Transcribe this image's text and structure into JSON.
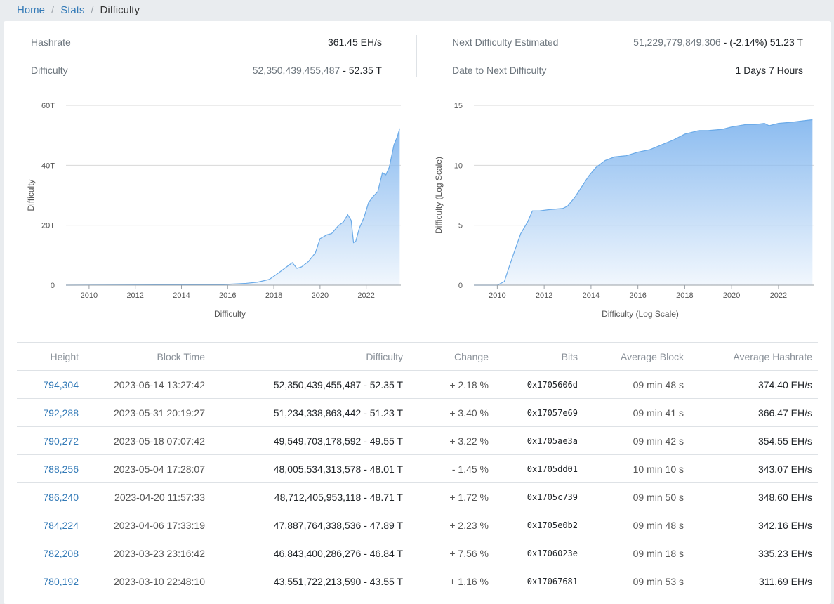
{
  "breadcrumb": {
    "home": "Home",
    "stats": "Stats",
    "current": "Difficulty"
  },
  "summary": {
    "hashrate_label": "Hashrate",
    "hashrate_value": "361.45 EH/s",
    "difficulty_label": "Difficulty",
    "difficulty_raw": "52,350,439,455,487",
    "difficulty_short": "52.35 T",
    "next_label": "Next Difficulty Estimated",
    "next_raw": "51,229,779,849,306",
    "next_change": "(-2.14%)",
    "next_short": "51.23 T",
    "date_label": "Date to Next Difficulty",
    "date_value": "1 Days 7 Hours"
  },
  "colors": {
    "accent": "#337ab7",
    "fill": "#8cbcf0",
    "line": "#6aaae8",
    "up": "#1a8a1a",
    "down": "#d62020"
  },
  "chart_data": [
    {
      "type": "area",
      "title": "Difficulty",
      "xlabel": "Difficulty",
      "ylabel": "Difficulty",
      "x_ticks": [
        "2010",
        "2012",
        "2014",
        "2016",
        "2018",
        "2020",
        "2022"
      ],
      "y_ticks": [
        "0",
        "20T",
        "40T",
        "60T"
      ],
      "xlim": [
        2009.0,
        2023.5
      ],
      "ylim": [
        0,
        60
      ],
      "y_unit": "T",
      "grid": true,
      "x": [
        2009.0,
        2013.0,
        2015.0,
        2016.0,
        2016.8,
        2017.3,
        2017.8,
        2018.1,
        2018.5,
        2018.8,
        2019.0,
        2019.2,
        2019.5,
        2019.8,
        2020.0,
        2020.3,
        2020.5,
        2020.8,
        2021.0,
        2021.2,
        2021.35,
        2021.45,
        2021.55,
        2021.7,
        2021.9,
        2022.1,
        2022.3,
        2022.5,
        2022.7,
        2022.85,
        2023.0,
        2023.2,
        2023.35,
        2023.45
      ],
      "values": [
        0,
        0.1,
        0.1,
        0.3,
        0.6,
        1.0,
        1.9,
        3.5,
        5.8,
        7.5,
        5.6,
        6.1,
        7.9,
        10.8,
        15.5,
        16.8,
        17.2,
        19.9,
        21.0,
        23.5,
        21.6,
        14.2,
        14.7,
        19.0,
        22.5,
        27.5,
        29.6,
        31.2,
        37.5,
        36.8,
        39.4,
        46.8,
        49.6,
        52.3
      ]
    },
    {
      "type": "area",
      "title": "Difficulty (Log Scale)",
      "xlabel": "Difficulty (Log Scale)",
      "ylabel": "Difficulty (Log Scale)",
      "x_ticks": [
        "2010",
        "2012",
        "2014",
        "2016",
        "2018",
        "2020",
        "2022"
      ],
      "y_ticks": [
        "0",
        "5",
        "10",
        "15"
      ],
      "xlim": [
        2009.0,
        2023.5
      ],
      "ylim": [
        0,
        15
      ],
      "grid": true,
      "x": [
        2009.0,
        2010.0,
        2010.3,
        2010.5,
        2010.8,
        2011.0,
        2011.3,
        2011.5,
        2011.8,
        2012.2,
        2012.8,
        2013.0,
        2013.3,
        2013.6,
        2013.9,
        2014.2,
        2014.6,
        2015.0,
        2015.5,
        2016.0,
        2016.5,
        2017.0,
        2017.5,
        2018.0,
        2018.6,
        2019.0,
        2019.6,
        2020.0,
        2020.6,
        2021.0,
        2021.4,
        2021.6,
        2022.0,
        2022.6,
        2023.0,
        2023.45
      ],
      "values": [
        0,
        0,
        0.3,
        1.5,
        3.2,
        4.3,
        5.3,
        6.2,
        6.2,
        6.3,
        6.4,
        6.6,
        7.3,
        8.2,
        9.1,
        9.8,
        10.4,
        10.7,
        10.8,
        11.1,
        11.3,
        11.7,
        12.1,
        12.6,
        12.9,
        12.9,
        13.0,
        13.2,
        13.4,
        13.4,
        13.5,
        13.3,
        13.5,
        13.6,
        13.7,
        13.8
      ]
    }
  ],
  "table": {
    "headers": [
      "Height",
      "Block Time",
      "Difficulty",
      "Change",
      "Bits",
      "Average Block",
      "Average Hashrate"
    ],
    "rows": [
      {
        "height": "794,304",
        "time": "2023-06-14 13:27:42",
        "difficulty": "52,350,439,455,487 - 52.35 T",
        "change": "+ 2.18 %",
        "dir": "up",
        "bits": "0x1705606d",
        "avg_block": "09 min 48 s",
        "hashrate": "374.40 EH/s"
      },
      {
        "height": "792,288",
        "time": "2023-05-31 20:19:27",
        "difficulty": "51,234,338,863,442 - 51.23 T",
        "change": "+ 3.40 %",
        "dir": "up",
        "bits": "0x17057e69",
        "avg_block": "09 min 41 s",
        "hashrate": "366.47 EH/s"
      },
      {
        "height": "790,272",
        "time": "2023-05-18 07:07:42",
        "difficulty": "49,549,703,178,592 - 49.55 T",
        "change": "+ 3.22 %",
        "dir": "up",
        "bits": "0x1705ae3a",
        "avg_block": "09 min 42 s",
        "hashrate": "354.55 EH/s"
      },
      {
        "height": "788,256",
        "time": "2023-05-04 17:28:07",
        "difficulty": "48,005,534,313,578 - 48.01 T",
        "change": "- 1.45 %",
        "dir": "down",
        "bits": "0x1705dd01",
        "avg_block": "10 min 10 s",
        "hashrate": "343.07 EH/s"
      },
      {
        "height": "786,240",
        "time": "2023-04-20 11:57:33",
        "difficulty": "48,712,405,953,118 - 48.71 T",
        "change": "+ 1.72 %",
        "dir": "up",
        "bits": "0x1705c739",
        "avg_block": "09 min 50 s",
        "hashrate": "348.60 EH/s"
      },
      {
        "height": "784,224",
        "time": "2023-04-06 17:33:19",
        "difficulty": "47,887,764,338,536 - 47.89 T",
        "change": "+ 2.23 %",
        "dir": "up",
        "bits": "0x1705e0b2",
        "avg_block": "09 min 48 s",
        "hashrate": "342.16 EH/s"
      },
      {
        "height": "782,208",
        "time": "2023-03-23 23:16:42",
        "difficulty": "46,843,400,286,276 - 46.84 T",
        "change": "+ 7.56 %",
        "dir": "up",
        "bits": "0x1706023e",
        "avg_block": "09 min 18 s",
        "hashrate": "335.23 EH/s"
      },
      {
        "height": "780,192",
        "time": "2023-03-10 22:48:10",
        "difficulty": "43,551,722,213,590 - 43.55 T",
        "change": "+ 1.16 %",
        "dir": "up",
        "bits": "0x17067681",
        "avg_block": "09 min 53 s",
        "hashrate": "311.69 EH/s"
      }
    ]
  }
}
